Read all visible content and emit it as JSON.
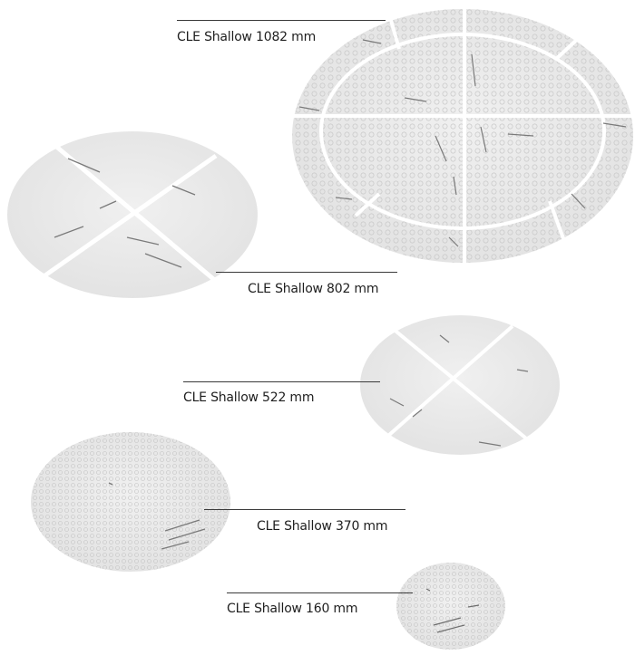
{
  "image": {
    "background": "#ffffff",
    "plate_color": "#ececec",
    "plate_seam_color": "#ffffff",
    "pattern_color": "#bdbdbd",
    "mark_color": "#707070"
  },
  "labels": {
    "cle_1082": "CLE Shallow 1082 mm",
    "cle_802": "CLE Shallow 802 mm",
    "cle_522": "CLE Shallow 522 mm",
    "cle_370": "CLE Shallow 370 mm",
    "cle_160": "CLE Shallow 160 mm"
  }
}
